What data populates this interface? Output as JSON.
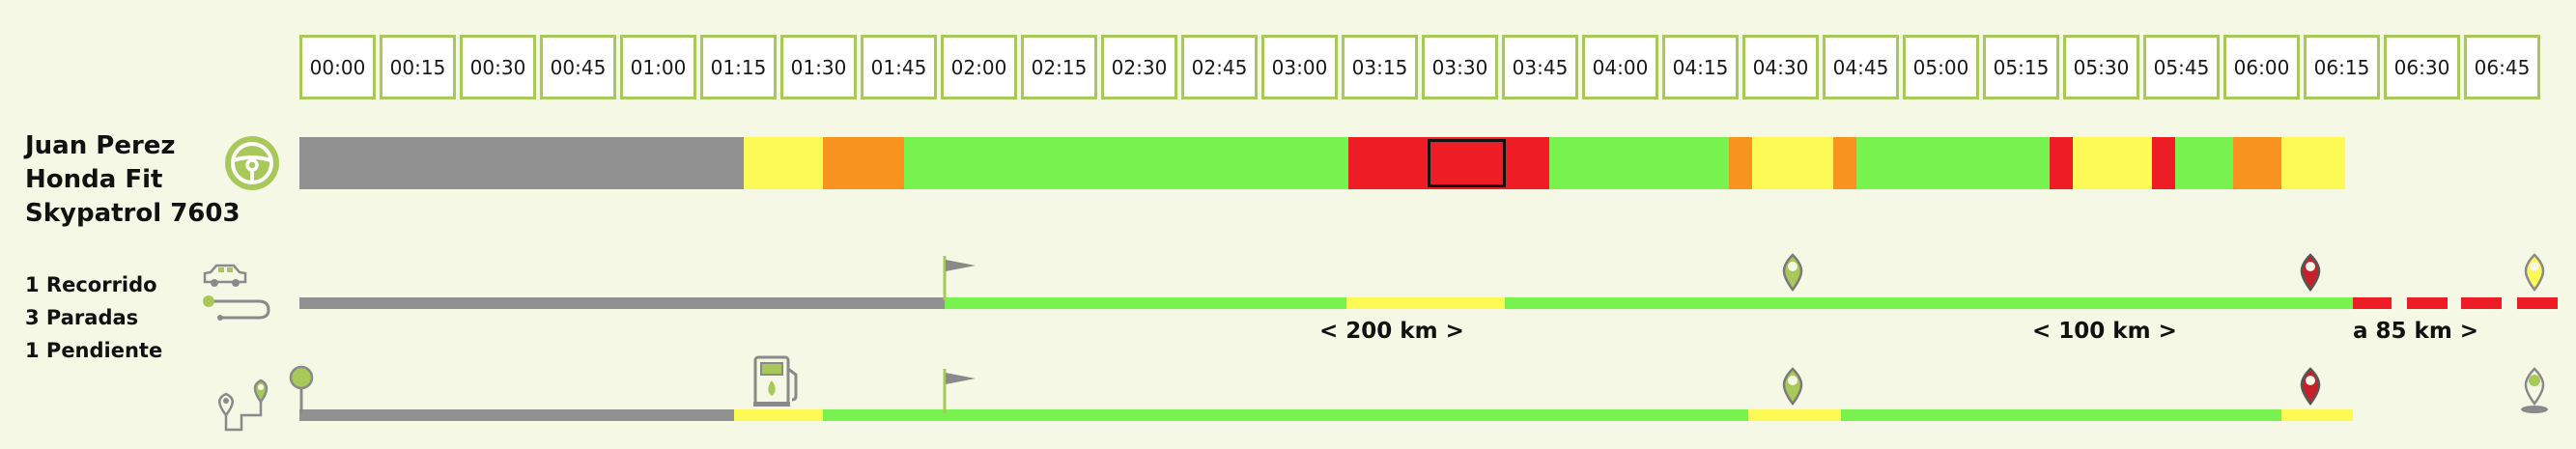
{
  "time_slots": [
    "00:00",
    "00:15",
    "00:30",
    "00:45",
    "01:00",
    "01:15",
    "01:30",
    "01:45",
    "02:00",
    "02:15",
    "02:30",
    "02:45",
    "03:00",
    "03:15",
    "03:30",
    "03:45",
    "04:00",
    "04:15",
    "04:30",
    "04:45",
    "05:00",
    "05:15",
    "05:30",
    "05:45",
    "06:00",
    "06:15",
    "06:30",
    "06:45"
  ],
  "vehicle": {
    "driver": "Juan Perez",
    "model": "Honda Fit",
    "device": "Skypatrol 7603"
  },
  "summary": {
    "trips": "1 Recorrido",
    "stops": "3 Paradas",
    "pending": "1 Pendiente"
  },
  "distances": {
    "first": "< 200 km >",
    "second": "< 100 km >",
    "remaining": "a 85 km >"
  },
  "colors": {
    "gray": "#919191",
    "yellow": "#fdf955",
    "orange": "#f8931f",
    "green": "#77f24e",
    "red": "#ee1c25",
    "olive": "#a8c85a"
  },
  "icons": [
    "steering-wheel-icon",
    "car-icon",
    "route-icon",
    "map-pin-route-icon",
    "pin-icon",
    "fuel-pump-icon",
    "flag-icon"
  ]
}
